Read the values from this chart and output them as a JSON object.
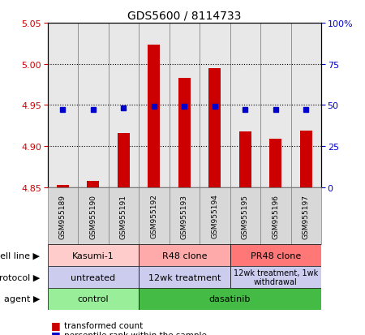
{
  "title": "GDS5600 / 8114733",
  "samples": [
    "GSM955189",
    "GSM955190",
    "GSM955191",
    "GSM955192",
    "GSM955193",
    "GSM955194",
    "GSM955195",
    "GSM955196",
    "GSM955197"
  ],
  "transformed_count": [
    4.853,
    4.858,
    4.916,
    5.023,
    4.983,
    4.995,
    4.918,
    4.909,
    4.919
  ],
  "percentile_rank": [
    47,
    47,
    48,
    49,
    49,
    49,
    47,
    47,
    47
  ],
  "ylim": [
    4.85,
    5.05
  ],
  "yticks_left": [
    4.85,
    4.9,
    4.95,
    5.0,
    5.05
  ],
  "yticks_right": [
    0,
    25,
    50,
    75,
    100
  ],
  "bar_color": "#cc0000",
  "dot_color": "#0000cc",
  "bar_base": 4.85,
  "agent_labels": [
    {
      "text": "control",
      "start": 0,
      "end": 3,
      "color": "#99ee99"
    },
    {
      "text": "dasatinib",
      "start": 3,
      "end": 9,
      "color": "#44bb44"
    }
  ],
  "protocol_labels": [
    {
      "text": "untreated",
      "start": 0,
      "end": 3,
      "color": "#ccccee"
    },
    {
      "text": "12wk treatment",
      "start": 3,
      "end": 6,
      "color": "#ccccee"
    },
    {
      "text": "12wk treatment, 1wk\nwithdrawal",
      "start": 6,
      "end": 9,
      "color": "#ccccee"
    }
  ],
  "cell_line_labels": [
    {
      "text": "Kasumi-1",
      "start": 0,
      "end": 3,
      "color": "#ffcccc"
    },
    {
      "text": "R48 clone",
      "start": 3,
      "end": 6,
      "color": "#ffaaaa"
    },
    {
      "text": "PR48 clone",
      "start": 6,
      "end": 9,
      "color": "#ff7777"
    }
  ],
  "legend_items": [
    {
      "color": "#cc0000",
      "label": "transformed count"
    },
    {
      "color": "#0000cc",
      "label": "percentile rank within the sample"
    }
  ],
  "tick_color_left": "#cc0000",
  "tick_color_right": "#0000cc",
  "xtick_bg": "#d0d0d0"
}
